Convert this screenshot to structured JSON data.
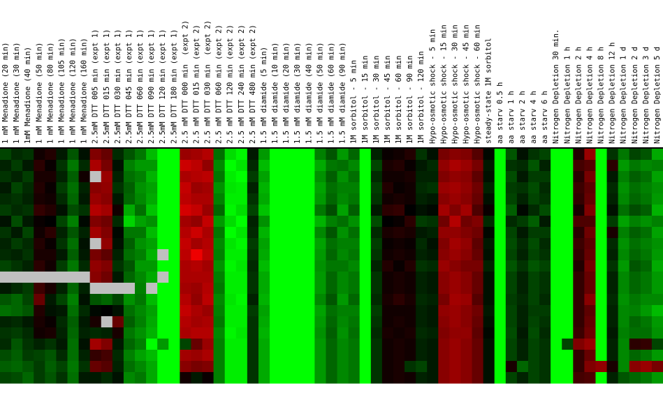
{
  "chart_data": {
    "type": "heatmap",
    "categories": [
      "1 mM Menadione (20 min)",
      "1 mM Menadione (30 min)",
      "1mM Menadione (40 min)",
      "1 mM Menadione (50 min)",
      "1 mM Menadione (80 min)",
      "1 mM Menadione (105 min)",
      "1 mM Menadione (120 min)",
      "1 mM Menadione (160 min)",
      "2.5mM DTT 005 min (expt 1)",
      "2.5mM DTT 015 min (expt 1)",
      "2.5mM DTT 030 min (expt 1)",
      "2.5mM DTT 045 min (expt 1)",
      "2.5mM DTT 060 min (expt 1)",
      "2.5mM DTT 090 min (expt 1)",
      "2.5mM DTT 120 min (expt 1)",
      "2.5mM DTT 180 min (expt 1)",
      "2.5 mM DTT 000 min  (expt 2)",
      "2.5 mM DTT 015 min (expt 2)",
      "2.5 mM DTT 030 min  (expt 2)",
      "2.5 mM DTT 060 min (expt 2)",
      "2.5 mM DTT 120 min (expt 2)",
      "2.5 mM DTT 240 min (expt 2)",
      "2.5 mM DTT 480 min (expt 2)",
      "1.5 mM diamide (5 min)",
      "1.5 mM diamide (10 min)",
      "1.5 mM diamide (20 min)",
      "1.5 mM diamide (30 min)",
      "1.5 mM diamide (40 min)",
      "1.5 mM diamide (50 min)",
      "1.5 mM diamide (60 min)",
      "1.5 mM diamide (90 min)",
      "1M sorbitol - 5 min",
      "1M sorbitol - 15 min",
      "1M sorbitol - 30 min",
      "1M sorbitol - 45 min",
      "1M sorbitol - 60 min",
      "1M sorbitol - 90 min",
      "1M sorbitol - 120 min",
      "Hypo-osmotic shock - 5 min",
      "Hypo-osmotic shock - 15 min",
      "Hypo-osmotic shock - 30 min",
      "Hypo-osmotic shock - 45 min",
      "Hypo-osmotic shock - 60 min",
      "steady-state 1M sorbitol",
      "aa starv 0.5 h",
      "aa starv 1 h",
      "aa starv 2 h",
      "aa starv 4 h",
      "aa starv 6 h",
      "Nitrogen Depletion 30 min.",
      "Nitrogen Depletion 1 h",
      "Nitrogen Depletion 2 h",
      "Nitrogen Depletion 4 h",
      "Nitrogen Depletion 8 h",
      "Nitrogen Depletion 12 h",
      "Nitrogen Depletion 1 d",
      "Nitrogen Depletion 2 d",
      "Nitrogen Depletion 3 d",
      "Nitrogen Depletion 5 d"
    ],
    "values": [
      [
        -0.8,
        -0.5,
        -0.6,
        0.2,
        0.4,
        -0.3,
        -1.0,
        -0.2,
        1.5,
        1.2,
        -0.5,
        -1.0,
        -1.4,
        -2.2,
        -3,
        -3,
        1.8,
        1.9,
        2.1,
        -1.3,
        -2.6,
        -2.9,
        -0.3,
        -1.8,
        -3,
        -3,
        -3,
        -3,
        -1.5,
        -1.0,
        -1.8,
        -1.2,
        -3,
        -0.4,
        0.1,
        0.2,
        0.4,
        -0.6,
        -0.2,
        1.4,
        1.6,
        1.5,
        1.0,
        -0.1,
        -3,
        -1.0,
        -0.2,
        -0.6,
        -0.8,
        -3,
        -3,
        0.4,
        1.8,
        -3,
        -0.6,
        -1.4,
        -0.8,
        -1.0,
        -2.0
      ],
      [
        -0.4,
        -0.7,
        -0.3,
        0.5,
        0.1,
        -0.6,
        -1.4,
        -0.5,
        2.0,
        1.4,
        -0.2,
        -1.5,
        -1.8,
        -1.8,
        -3,
        -3,
        2.4,
        2.2,
        1.7,
        -1.6,
        -3,
        -2.7,
        -0.5,
        -2.2,
        -3,
        -3,
        -3,
        -3,
        -2.0,
        -1.4,
        -1.3,
        -1.6,
        -3,
        -0.8,
        0.3,
        0.4,
        0.1,
        -0.3,
        -0.5,
        1.7,
        2.0,
        1.8,
        1.4,
        -0.3,
        -3,
        -0.6,
        -0.5,
        -1.0,
        -0.4,
        -3,
        -3,
        0.8,
        1.0,
        -3,
        0.5,
        -1.8,
        -1.4,
        -1.6,
        -1.5
      ],
      [
        -0.6,
        -0.4,
        -0.7,
        0.3,
        0.3,
        -0.4,
        -1.1,
        0.2,
        null,
        1.8,
        -0.4,
        -1.3,
        -1.5,
        -2.1,
        -3,
        -3,
        2.0,
        2.1,
        2.2,
        -1.4,
        -2.8,
        -3,
        -0.7,
        -1.9,
        -3,
        -3,
        -3,
        -3,
        -1.7,
        -1.1,
        -1.7,
        -1.3,
        -3,
        -0.5,
        0.2,
        0.2,
        0.3,
        -0.4,
        -0.4,
        1.5,
        1.7,
        1.6,
        1.1,
        -0.2,
        -3,
        -0.9,
        -0.3,
        -0.7,
        -0.7,
        -3,
        -3,
        0.5,
        1.4,
        -3,
        -0.3,
        -1.5,
        -1.1,
        -1.3,
        -1.9
      ],
      [
        -0.3,
        -0.8,
        -0.5,
        0.4,
        0.1,
        -0.7,
        -1.3,
        -0.4,
        1.6,
        1.7,
        -0.6,
        -1.1,
        -1.7,
        -1.9,
        -3,
        -3,
        2.3,
        1.8,
        1.9,
        -1.7,
        -2.7,
        -2.8,
        -0.4,
        -2.1,
        -3,
        -3,
        -3,
        -3,
        -1.9,
        -1.3,
        -1.5,
        -1.5,
        -3,
        -0.7,
        0.4,
        0.1,
        0.2,
        -0.5,
        -0.6,
        1.8,
        1.9,
        1.7,
        1.3,
        -0.4,
        -3,
        -0.7,
        -0.6,
        -0.9,
        -0.5,
        -3,
        -3,
        0.7,
        1.1,
        -3,
        -0.5,
        -1.7,
        -1.3,
        -1.5,
        -1.7
      ],
      [
        -0.5,
        -0.6,
        -0.4,
        0.3,
        0.2,
        -0.5,
        -1.2,
        -0.3,
        1.8,
        1.6,
        -0.3,
        -1.2,
        -1.6,
        -2.0,
        -3,
        -3,
        2.2,
        2.0,
        2.0,
        -1.5,
        -2.8,
        -2.8,
        -0.6,
        -2.0,
        -3,
        -3,
        -3,
        -3,
        -1.8,
        -1.2,
        -1.6,
        -1.4,
        -3,
        -0.6,
        0.2,
        0.3,
        0.2,
        -0.4,
        -0.3,
        1.6,
        1.8,
        1.6,
        1.2,
        -0.2,
        -3,
        -0.8,
        -0.4,
        -0.8,
        -0.6,
        -3,
        -3,
        0.6,
        1.2,
        -3,
        -0.4,
        -1.6,
        -1.2,
        -1.4,
        -1.8
      ],
      [
        -0.7,
        -0.5,
        -0.6,
        0.6,
        0.4,
        -0.2,
        -0.9,
        -0.6,
        2.1,
        1.9,
        0.2,
        -2.0,
        -1.3,
        -2.3,
        -3,
        -3,
        2.5,
        2.3,
        1.8,
        -1.2,
        -2.9,
        -2.6,
        -0.8,
        -2.3,
        -3,
        -3,
        -3,
        -3,
        -1.4,
        -0.9,
        -1.9,
        -1.1,
        -3,
        -0.3,
        0.5,
        0.6,
        0.0,
        -0.2,
        -0.1,
        1.9,
        1.5,
        1.9,
        0.9,
        0.1,
        -3,
        -1.1,
        -0.1,
        -0.5,
        -0.9,
        -3,
        -3,
        0.3,
        1.5,
        -3,
        -0.2,
        -1.3,
        -0.9,
        -1.1,
        -2.1
      ],
      [
        -0.2,
        -0.9,
        -0.3,
        0.1,
        0.0,
        -0.8,
        -1.5,
        -0.1,
        1.5,
        1.3,
        -0.5,
        -2.5,
        -1.9,
        -1.7,
        -3,
        -3,
        1.9,
        1.7,
        2.3,
        -1.8,
        -2.6,
        -3,
        -0.4,
        -1.7,
        -3,
        -3,
        -3,
        -3,
        -2.1,
        -1.5,
        -1.3,
        -1.7,
        -3,
        -0.9,
        0.0,
        0.1,
        0.5,
        -0.7,
        -0.6,
        1.3,
        2.1,
        1.3,
        1.5,
        -0.5,
        -3,
        -0.5,
        -0.7,
        -1.1,
        -0.3,
        -3,
        -3,
        0.9,
        0.9,
        -3,
        -0.7,
        -1.9,
        -1.5,
        -1.7,
        -1.5
      ],
      [
        -0.6,
        -0.3,
        -0.8,
        0.2,
        0.5,
        -0.4,
        -1.0,
        -0.4,
        1.9,
        1.5,
        -0.1,
        -1.4,
        -1.4,
        -2.2,
        -3,
        -3,
        2.1,
        2.4,
        2.0,
        -1.4,
        -3,
        -2.7,
        -0.5,
        -2.1,
        -3,
        -3,
        -3,
        -3,
        -1.6,
        -1.0,
        -1.7,
        -1.3,
        -3,
        -0.5,
        0.3,
        0.4,
        0.3,
        -0.3,
        -0.4,
        1.7,
        1.7,
        1.5,
        1.3,
        -0.1,
        -3,
        -0.8,
        -0.3,
        -0.7,
        -0.7,
        -3,
        -3,
        0.5,
        1.3,
        -3,
        0.3,
        -1.5,
        -1.1,
        -1.3,
        -1.9
      ],
      [
        -0.4,
        -0.7,
        -0.5,
        0.4,
        0.1,
        -0.6,
        -1.3,
        -0.2,
        null,
        1.7,
        -0.2,
        -1.1,
        -1.7,
        -1.9,
        -3,
        -3,
        2.3,
        1.9,
        2.1,
        -1.6,
        -2.7,
        -2.9,
        -0.7,
        -1.9,
        -3,
        -3,
        -3,
        -3,
        -1.9,
        -1.3,
        -1.5,
        -1.5,
        -3,
        -0.7,
        0.1,
        0.2,
        0.1,
        -0.5,
        -0.2,
        1.5,
        1.9,
        1.7,
        1.1,
        -0.3,
        -3,
        -0.9,
        -0.5,
        -0.9,
        -0.5,
        -3,
        -3,
        0.7,
        1.1,
        -3,
        -0.5,
        -1.7,
        -1.3,
        -1.5,
        -1.7
      ],
      [
        -0.5,
        -0.4,
        -0.6,
        0.3,
        0.3,
        -0.3,
        -1.1,
        -0.3,
        1.4,
        1.1,
        -0.4,
        -1.3,
        -1.5,
        -2.1,
        null,
        -3,
        2.2,
        2.8,
        2.2,
        -1.5,
        -2.8,
        -2.8,
        -0.6,
        -2.0,
        -3,
        -3,
        -3,
        -3,
        -1.8,
        -1.2,
        -1.6,
        -1.4,
        -3,
        -0.6,
        0.2,
        0.3,
        0.2,
        -0.4,
        -0.3,
        1.6,
        1.8,
        1.6,
        1.2,
        -0.2,
        -3,
        -0.8,
        -0.4,
        -0.8,
        -0.6,
        -3,
        -3,
        0.6,
        1.2,
        -3,
        -0.4,
        -1.6,
        -1.2,
        -1.4,
        -1.8
      ],
      [
        -0.8,
        -0.6,
        -0.4,
        0.5,
        0.2,
        -0.7,
        -1.4,
        -0.5,
        1.7,
        1.5,
        -0.6,
        -1.0,
        -1.8,
        -1.8,
        -3,
        -3,
        2.0,
        2.1,
        1.9,
        -1.7,
        -2.9,
        -2.7,
        -0.5,
        -2.2,
        -3,
        -3,
        -3,
        -3,
        -1.7,
        -1.4,
        -1.4,
        -1.6,
        -3,
        -0.4,
        0.4,
        0.1,
        0.4,
        -0.6,
        -0.5,
        1.8,
        1.6,
        1.4,
        1.4,
        -0.4,
        -3,
        -1.0,
        -0.6,
        -1.0,
        -0.8,
        -3,
        -3,
        0.4,
        1.4,
        -3,
        -0.6,
        -1.8,
        -1.0,
        -1.2,
        -2.0
      ],
      [
        null,
        null,
        null,
        null,
        null,
        null,
        null,
        null,
        1.6,
        1.3,
        -0.3,
        -1.2,
        -1.6,
        -2.0,
        null,
        -3,
        2.0,
        2.0,
        2.0,
        -1.5,
        -2.8,
        -2.8,
        -0.6,
        -2.0,
        -3,
        -3,
        -3,
        -3,
        -1.8,
        -1.2,
        -1.6,
        -1.4,
        -3,
        -0.6,
        0.2,
        0.3,
        0.2,
        -0.4,
        -0.3,
        1.6,
        1.8,
        1.6,
        1.2,
        -0.2,
        -3,
        -0.8,
        -0.4,
        -0.8,
        -0.6,
        -3,
        -3,
        0.6,
        1.2,
        -3,
        -0.4,
        -1.6,
        -1.2,
        -1.4,
        -1.8
      ],
      [
        -0.3,
        -0.5,
        -0.7,
        0.7,
        0.3,
        -0.4,
        -1.2,
        -0.4,
        null,
        null,
        null,
        null,
        -1.5,
        null,
        -3,
        -3,
        1.9,
        1.8,
        2.1,
        -1.4,
        -2.8,
        -2.8,
        -0.6,
        -2.0,
        -3,
        -3,
        -3,
        -3,
        -1.8,
        -1.2,
        -1.6,
        -1.4,
        -3,
        -0.6,
        0.2,
        0.3,
        0.2,
        -0.4,
        -0.3,
        1.6,
        1.8,
        1.6,
        1.2,
        -0.2,
        -3,
        -0.8,
        -0.4,
        -0.8,
        -0.6,
        -3,
        -3,
        0.6,
        1.2,
        -3,
        -0.4,
        -1.6,
        -1.2,
        -1.4,
        -1.8
      ],
      [
        -1.0,
        -1.2,
        -0.8,
        1.2,
        -0.3,
        -0.8,
        -1.5,
        -0.2,
        -1.0,
        -1.2,
        -0.8,
        -1.7,
        -1.4,
        -2.2,
        -3,
        -3,
        2.1,
        1.7,
        2.2,
        -1.6,
        -2.7,
        -2.9,
        -0.4,
        -2.1,
        -3,
        -3,
        -3,
        -3,
        -1.6,
        -1.0,
        -1.8,
        -1.2,
        -3,
        -0.5,
        0.3,
        0.5,
        0.3,
        -0.5,
        -0.4,
        1.4,
        1.9,
        1.8,
        1.0,
        -0.2,
        -3,
        -0.7,
        -0.5,
        -0.8,
        -0.5,
        -3,
        -3,
        0.6,
        1.6,
        -3,
        -0.5,
        -1.7,
        -1.4,
        -1.6,
        -1.6
      ],
      [
        -1.3,
        -1.2,
        -1.0,
        0.4,
        -0.2,
        -0.3,
        -1.3,
        -0.5,
        -0.1,
        0.0,
        -0.2,
        -1.3,
        -1.6,
        -1.9,
        -3,
        -3,
        2.3,
        2.0,
        1.8,
        -1.5,
        -2.8,
        -2.8,
        -0.7,
        -1.9,
        -3,
        -3,
        -3,
        -3,
        -1.9,
        -1.3,
        -1.5,
        -1.5,
        -3,
        -0.7,
        0.2,
        0.2,
        0.2,
        -0.4,
        -0.3,
        1.7,
        1.8,
        1.6,
        1.3,
        -0.3,
        -3,
        -0.8,
        -0.4,
        -0.7,
        -0.7,
        -3,
        -3,
        0.6,
        1.1,
        -3,
        -0.4,
        -1.6,
        -1.5,
        -1.8,
        -2.2
      ],
      [
        -0.4,
        -0.5,
        -0.3,
        0.3,
        0.1,
        -0.5,
        -1.1,
        -0.3,
        0.3,
        null,
        1.2,
        -1.1,
        -1.5,
        -2.0,
        -3,
        -3,
        2.1,
        1.9,
        2.0,
        -1.4,
        -2.8,
        -2.8,
        -0.6,
        -2.0,
        -3,
        -3,
        -3,
        -3,
        -1.8,
        -1.2,
        -1.6,
        -1.4,
        -3,
        -0.6,
        0.2,
        0.3,
        0.2,
        -0.4,
        -0.3,
        1.6,
        1.8,
        1.6,
        1.2,
        -0.2,
        -3,
        -0.8,
        -0.4,
        -0.8,
        -0.6,
        -3,
        -3,
        0.6,
        1.2,
        -3,
        -0.4,
        -1.6,
        -1.2,
        -1.4,
        -1.8
      ],
      [
        -0.6,
        -0.7,
        -0.5,
        0.2,
        0.3,
        -0.4,
        -1.2,
        -0.4,
        -0.5,
        -0.4,
        0.3,
        -1.4,
        -1.7,
        -2.1,
        -3,
        -3,
        2.0,
        2.1,
        2.1,
        -1.6,
        -2.9,
        -2.7,
        -0.6,
        -2.1,
        -3,
        -3,
        -3,
        -3,
        -1.7,
        -1.1,
        -1.7,
        -1.3,
        -3,
        -0.5,
        0.3,
        0.2,
        0.3,
        -0.5,
        -0.4,
        1.5,
        1.7,
        1.7,
        1.1,
        -0.1,
        -3,
        -0.9,
        -0.3,
        -0.9,
        -0.5,
        -3,
        -3,
        0.7,
        1.3,
        -3,
        -0.3,
        -1.5,
        -1.3,
        -1.3,
        -1.7
      ],
      [
        -0.5,
        -1.0,
        -0.6,
        -0.4,
        -0.6,
        -0.3,
        -1.3,
        -0.2,
        1.9,
        1.5,
        -0.3,
        -1.2,
        -1.5,
        -3,
        -1.8,
        -3,
        -0.8,
        1.2,
        1.8,
        -1.5,
        -2.8,
        -2.8,
        -0.6,
        -2.0,
        -3,
        -3,
        -3,
        -3,
        -1.8,
        -1.2,
        -1.6,
        -1.4,
        -3,
        -0.6,
        0.2,
        0.3,
        0.2,
        -0.4,
        -0.3,
        1.6,
        1.8,
        1.6,
        1.2,
        -0.2,
        -3,
        -0.8,
        -0.4,
        -0.8,
        -0.6,
        -3,
        -0.8,
        1.5,
        1.8,
        -3,
        -0.4,
        -1.6,
        0.5,
        0.6,
        -0.8
      ],
      [
        -0.9,
        -1.1,
        -0.7,
        -0.8,
        -1.0,
        -0.5,
        -1.3,
        -0.4,
        0.6,
        0.8,
        -0.5,
        -1.5,
        -1.9,
        -2.2,
        -3,
        -3,
        1.9,
        1.8,
        2.0,
        -1.5,
        -2.8,
        -2.8,
        -0.6,
        -2.0,
        -3,
        -3,
        -3,
        -3,
        -1.8,
        -1.2,
        -1.6,
        -1.4,
        -3,
        -0.6,
        0.2,
        0.3,
        0.2,
        -0.4,
        -0.3,
        1.6,
        1.8,
        1.6,
        1.2,
        -0.2,
        -3,
        -0.8,
        -0.4,
        -0.8,
        -0.6,
        -3,
        -3,
        0.6,
        1.2,
        -3,
        -0.4,
        -1.6,
        -1.2,
        -1.4,
        -1.8
      ],
      [
        -1.1,
        -1.2,
        -1.0,
        -0.7,
        -1.1,
        -0.8,
        -1.4,
        -0.6,
        1.2,
        1.0,
        -0.4,
        -1.3,
        -1.6,
        -2.0,
        -3,
        -3,
        1.6,
        1.4,
        1.5,
        -1.5,
        -2.8,
        -2.8,
        -0.6,
        -2.0,
        -3,
        -3,
        -3,
        -3,
        -1.8,
        -1.2,
        -1.6,
        -1.4,
        -3,
        -0.6,
        0.2,
        0.3,
        -0.6,
        -0.8,
        -0.3,
        1.6,
        1.8,
        1.6,
        1.2,
        -0.2,
        -3,
        0.3,
        -1.2,
        -0.8,
        -0.6,
        -3,
        -3,
        0.6,
        1.5,
        1.7,
        0.3,
        -1.6,
        1.6,
        1.8,
        1.4
      ],
      [
        -0.8,
        -0.9,
        -1.2,
        -0.7,
        -1.0,
        -0.6,
        -1.3,
        -0.3,
        -0.3,
        -0.5,
        -0.2,
        -1.6,
        -1.4,
        -2.0,
        -3,
        -3,
        0.2,
        -0.3,
        0.1,
        -1.5,
        -2.8,
        -2.8,
        -0.6,
        -2.0,
        -3,
        -3,
        -3,
        -3,
        -1.8,
        -1.2,
        -1.6,
        -1.4,
        -3,
        -0.6,
        0.2,
        0.3,
        0.2,
        -0.4,
        -0.3,
        1.6,
        1.8,
        1.6,
        1.2,
        -0.2,
        -3,
        -0.8,
        -0.4,
        -0.8,
        -0.6,
        -3,
        -3,
        0.8,
        0.9,
        -3,
        -0.4,
        -1.0,
        -1.2,
        -1.4,
        -1.8
      ]
    ],
    "zlim": [
      -3,
      3
    ],
    "colors": {
      "low": "#00ff00",
      "mid": "#000000",
      "high": "#ff0000",
      "missing": "#c0c0c0"
    }
  }
}
